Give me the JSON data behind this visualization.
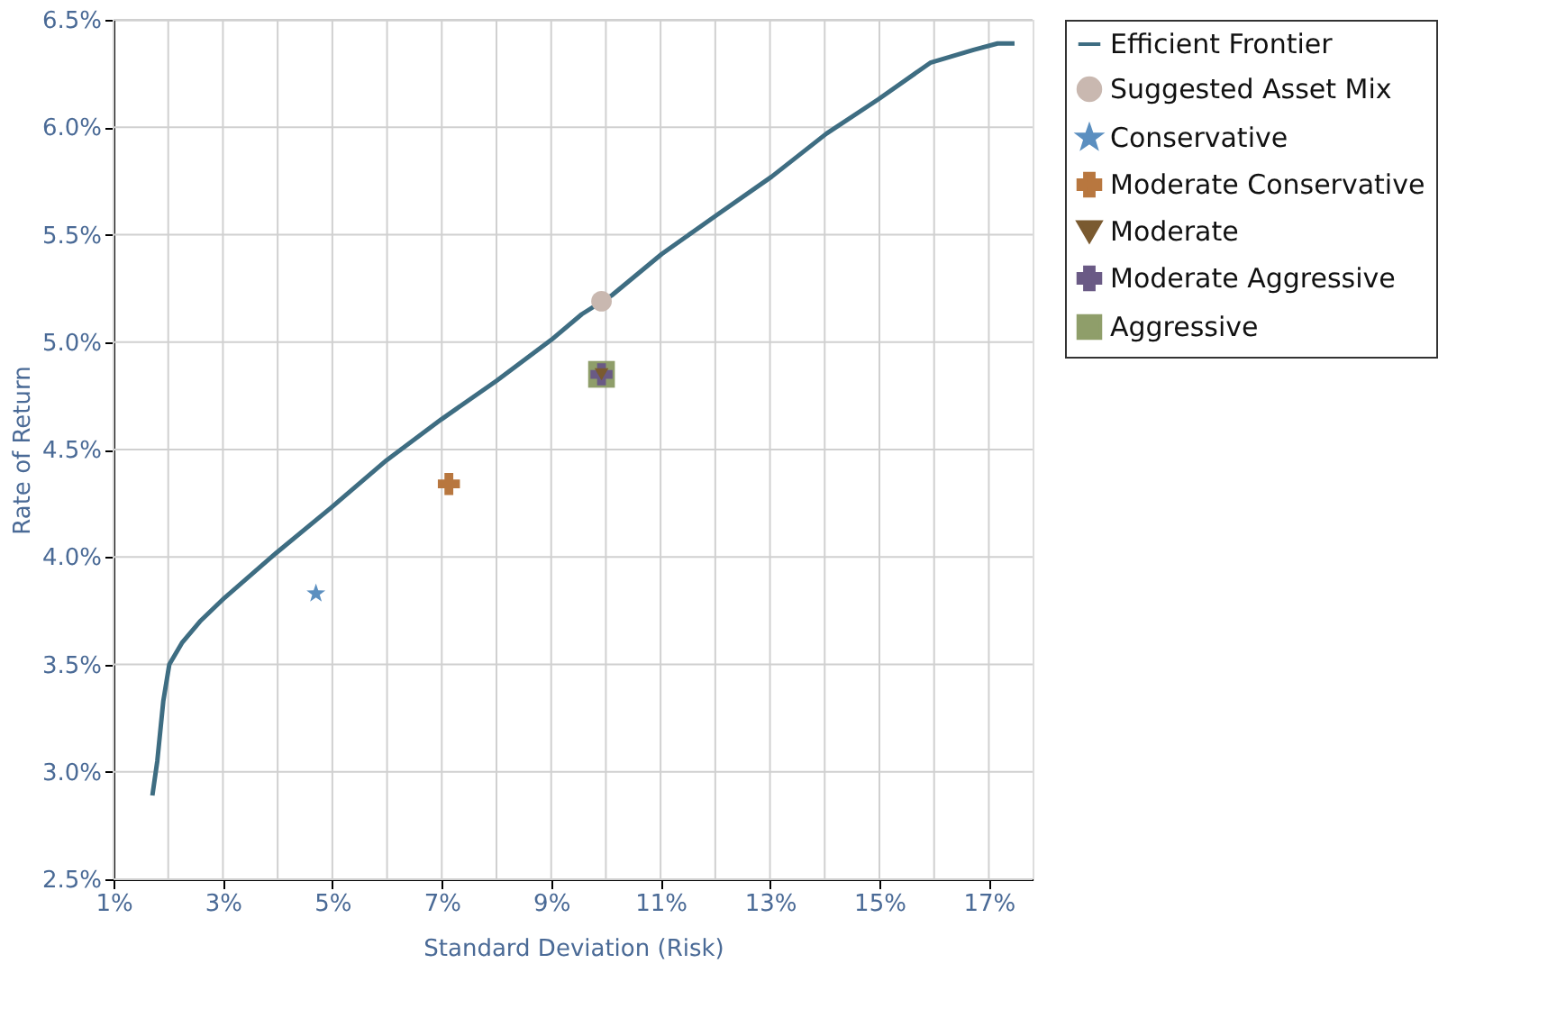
{
  "chart_data": {
    "type": "line",
    "xlabel": "Standard Deviation (Risk)",
    "ylabel": "Rate of Return",
    "xlim": [
      1,
      17.8
    ],
    "ylim": [
      2.5,
      6.5
    ],
    "xticks": [
      {
        "value": 1,
        "label": "1%"
      },
      {
        "value": 2,
        "label": null
      },
      {
        "value": 3,
        "label": "3%"
      },
      {
        "value": 4,
        "label": null
      },
      {
        "value": 5,
        "label": "5%"
      },
      {
        "value": 6,
        "label": null
      },
      {
        "value": 7,
        "label": "7%"
      },
      {
        "value": 8,
        "label": null
      },
      {
        "value": 9,
        "label": "9%"
      },
      {
        "value": 10,
        "label": null
      },
      {
        "value": 11,
        "label": "11%"
      },
      {
        "value": 12,
        "label": null
      },
      {
        "value": 13,
        "label": "13%"
      },
      {
        "value": 14,
        "label": null
      },
      {
        "value": 15,
        "label": "15%"
      },
      {
        "value": 16,
        "label": null
      },
      {
        "value": 17,
        "label": "17%"
      }
    ],
    "yticks": [
      {
        "value": 2.5,
        "label": "2.5%"
      },
      {
        "value": 3.0,
        "label": "3.0%"
      },
      {
        "value": 3.5,
        "label": "3.5%"
      },
      {
        "value": 4.0,
        "label": "4.0%"
      },
      {
        "value": 4.5,
        "label": "4.5%"
      },
      {
        "value": 5.0,
        "label": "5.0%"
      },
      {
        "value": 5.5,
        "label": "5.5%"
      },
      {
        "value": 6.0,
        "label": "6.0%"
      },
      {
        "value": 6.5,
        "label": "6.5%"
      }
    ],
    "grid": true,
    "legend": "right",
    "series": [
      {
        "name": "Efficient Frontier",
        "color": "#3e6d82",
        "line_style": "solid",
        "x": [
          1.71,
          1.8,
          1.91,
          2.02,
          2.25,
          2.58,
          3.03,
          3.98,
          4.98,
          5.99,
          6.99,
          8.0,
          9.0,
          9.56,
          10.12,
          11.02,
          12.02,
          13.03,
          14.03,
          14.98,
          15.93,
          16.72,
          17.16,
          17.47
        ],
        "values": [
          2.89,
          3.05,
          3.33,
          3.5,
          3.6,
          3.7,
          3.81,
          4.02,
          4.23,
          4.45,
          4.64,
          4.82,
          5.01,
          5.13,
          5.22,
          5.41,
          5.59,
          5.77,
          5.97,
          6.13,
          6.3,
          6.36,
          6.39,
          6.39
        ]
      },
      {
        "name": "Suggested Asset Mix",
        "type": "scatter",
        "marker": "circle",
        "color": "#c9b8b0",
        "x": [
          9.92
        ],
        "values": [
          5.19
        ]
      },
      {
        "name": "Conservative",
        "type": "scatter",
        "marker": "star",
        "color": "#5b8fc0",
        "x": [
          4.7
        ],
        "values": [
          3.83
        ]
      },
      {
        "name": "Moderate Conservative",
        "type": "scatter",
        "marker": "cross",
        "color": "#b8773f",
        "x": [
          7.13
        ],
        "values": [
          4.34
        ]
      },
      {
        "name": "Moderate",
        "type": "scatter",
        "marker": "triangle",
        "color": "#7a5a30",
        "x": [
          9.92
        ],
        "values": [
          4.85
        ]
      },
      {
        "name": "Moderate Aggressive",
        "type": "scatter",
        "marker": "cross",
        "color": "#6a5a85",
        "x": [
          9.92
        ],
        "values": [
          4.85
        ]
      },
      {
        "name": "Aggressive",
        "type": "scatter",
        "marker": "square",
        "color": "#8f9e6a",
        "x": [
          9.92
        ],
        "values": [
          4.85
        ]
      }
    ]
  }
}
